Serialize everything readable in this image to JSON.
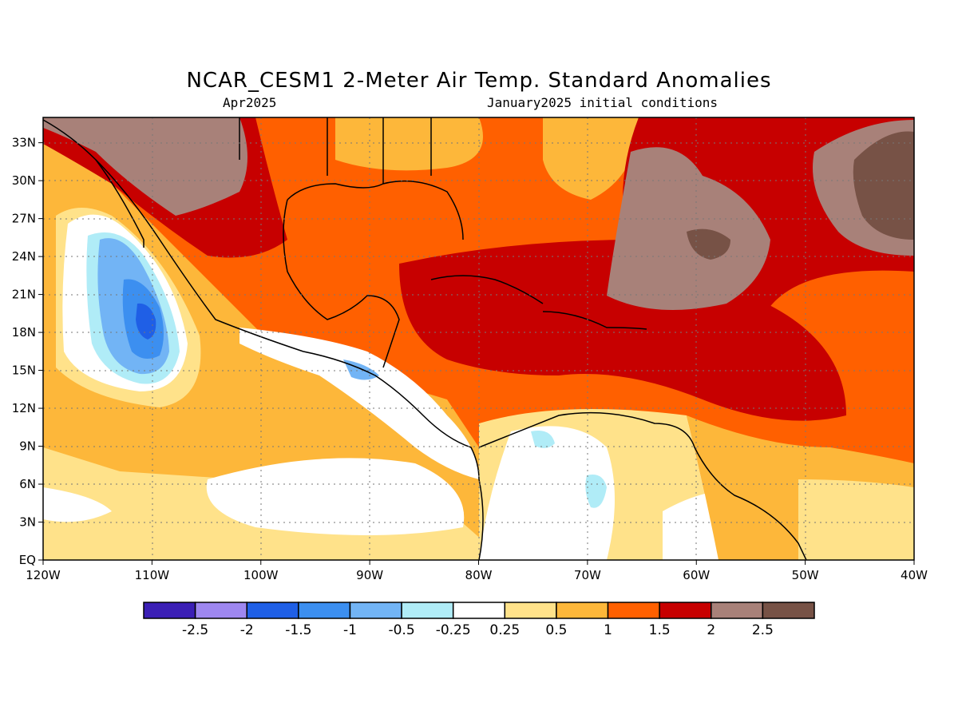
{
  "title": "NCAR_CESM1 2-Meter Air Temp. Standard Anomalies",
  "subtitle_left": "Apr2025",
  "subtitle_right": "January2025 initial conditions",
  "map": {
    "lon_labels": [
      "120W",
      "110W",
      "100W",
      "90W",
      "80W",
      "70W",
      "60W",
      "50W",
      "40W"
    ],
    "lat_labels": [
      "EQ",
      "3N",
      "6N",
      "9N",
      "12N",
      "15N",
      "18N",
      "21N",
      "24N",
      "27N",
      "30N",
      "33N"
    ],
    "lon_range": [
      -120,
      -40
    ],
    "lat_range": [
      0,
      35
    ],
    "grid": true
  },
  "colorbar": {
    "labels": [
      "-2.5",
      "-2",
      "-1.5",
      "-1",
      "-0.5",
      "-0.25",
      "0.25",
      "0.5",
      "1",
      "1.5",
      "2",
      "2.5"
    ],
    "colors": [
      "#3b1fb5",
      "#9e87f0",
      "#1f5fe6",
      "#3c8ff0",
      "#72b4f5",
      "#b0ecf7",
      "#ffffff",
      "#ffe28a",
      "#fdb73a",
      "#ff6000",
      "#c70000",
      "#a88179",
      "#775246"
    ]
  }
}
